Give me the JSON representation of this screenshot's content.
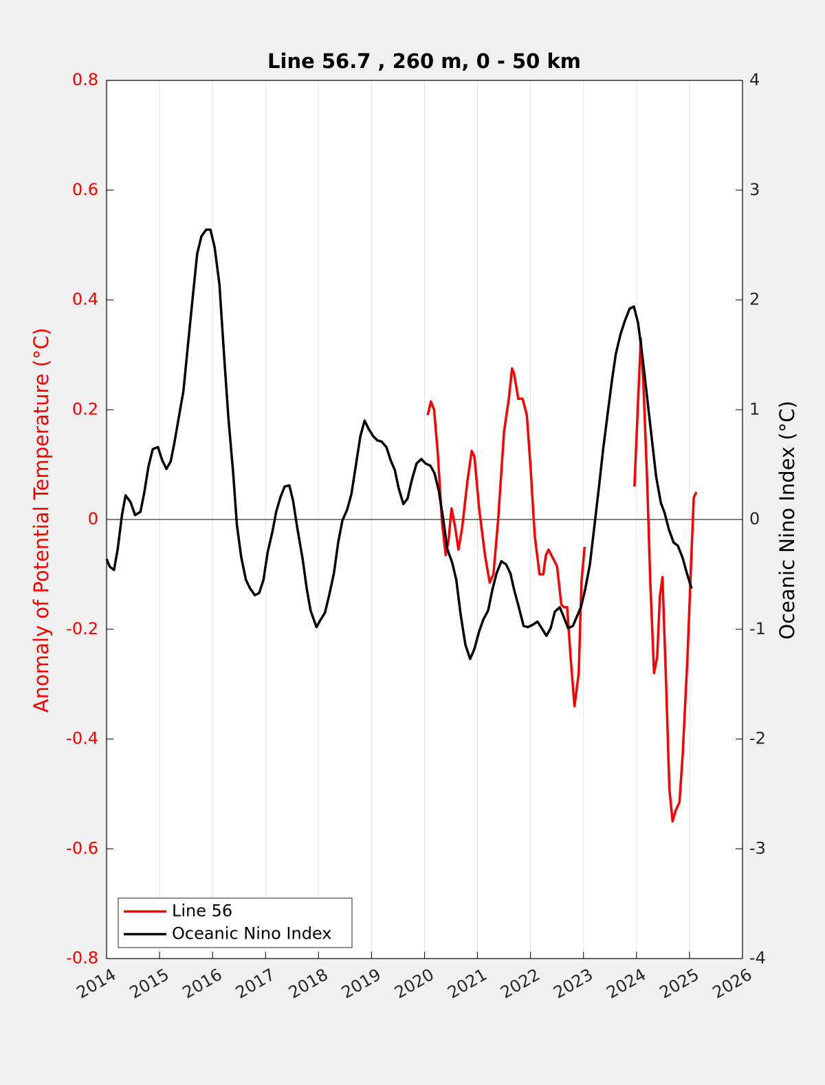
{
  "chart_data": {
    "type": "line",
    "title": "Line 56.7 , 260 m, 0 - 50 km",
    "ylabel": "Anomaly of Potential Temperature (°C)",
    "y2label": "Oceanic Nino Index (°C)",
    "xlim": [
      2014,
      2026
    ],
    "xticks": [
      2014,
      2015,
      2016,
      2017,
      2018,
      2019,
      2020,
      2021,
      2022,
      2023,
      2024,
      2025,
      2026
    ],
    "ylim": [
      -0.8,
      0.8
    ],
    "yticks": [
      -0.8,
      -0.6,
      -0.4,
      -0.2,
      0,
      0.2,
      0.4,
      0.6,
      0.8
    ],
    "y2lim": [
      -4,
      4
    ],
    "y2ticks": [
      -4,
      -3,
      -2,
      -1,
      0,
      1,
      2,
      3,
      4
    ],
    "xgrid": true,
    "zero_line": true,
    "legend": "lower-left",
    "series": [
      {
        "name": "Line 56",
        "color": "#ff0000",
        "axis": "y",
        "x": [
          2020.06,
          2020.12,
          2020.18,
          2020.25,
          2020.33,
          2020.4,
          2020.45,
          2020.51,
          2020.58,
          2020.64,
          2020.71,
          2020.81,
          2020.89,
          2020.94,
          2021.03,
          2021.14,
          2021.23,
          2021.3,
          2021.39,
          2021.5,
          2021.59,
          2021.65,
          2021.69,
          2021.77,
          2021.85,
          2021.93,
          2022.0,
          2022.08,
          2022.17,
          2022.24,
          2022.29,
          2022.34,
          2022.42,
          2022.5,
          2022.58,
          2022.63,
          2022.69,
          2022.76,
          2022.83,
          2022.91,
          2022.96,
          2023.02,
          2023.5,
          2023.96,
          2024.02,
          2024.08,
          2024.13,
          2024.2,
          2024.26,
          2024.33,
          2024.39,
          2024.44,
          2024.49,
          2024.56,
          2024.62,
          2024.68,
          2024.74,
          2024.81,
          2024.87,
          2024.96,
          2025.04,
          2025.08,
          2025.13
        ],
        "values": [
          0.19,
          0.215,
          0.2,
          0.12,
          -0.005,
          -0.065,
          -0.04,
          0.02,
          -0.015,
          -0.055,
          -0.015,
          0.07,
          0.125,
          0.115,
          0.02,
          -0.065,
          -0.115,
          -0.1,
          0,
          0.16,
          0.22,
          0.275,
          0.265,
          0.22,
          0.22,
          0.19,
          0.095,
          -0.03,
          -0.1,
          -0.1,
          -0.065,
          -0.055,
          -0.07,
          -0.085,
          -0.155,
          -0.16,
          -0.16,
          -0.255,
          -0.34,
          -0.28,
          -0.115,
          -0.05,
          null,
          0.06,
          0.195,
          0.33,
          0.245,
          0.07,
          -0.115,
          -0.28,
          -0.25,
          -0.14,
          -0.105,
          -0.305,
          -0.49,
          -0.55,
          -0.53,
          -0.515,
          -0.43,
          -0.255,
          -0.055,
          0.04,
          0.05
        ]
      },
      {
        "name": "Oceanic Nino Index",
        "color": "#000000",
        "axis": "y2",
        "x": [
          2014.0,
          2014.06,
          2014.14,
          2014.21,
          2014.29,
          2014.36,
          2014.45,
          2014.54,
          2014.64,
          2014.71,
          2014.79,
          2014.87,
          2014.97,
          2015.05,
          2015.13,
          2015.21,
          2015.28,
          2015.36,
          2015.45,
          2015.54,
          2015.63,
          2015.71,
          2015.79,
          2015.88,
          2015.96,
          2016.04,
          2016.13,
          2016.22,
          2016.3,
          2016.39,
          2016.46,
          2016.54,
          2016.63,
          2016.71,
          2016.8,
          2016.88,
          2016.96,
          2017.04,
          2017.13,
          2017.2,
          2017.28,
          2017.36,
          2017.45,
          2017.52,
          2017.6,
          2017.7,
          2017.78,
          2017.85,
          2017.96,
          2018.03,
          2018.12,
          2018.2,
          2018.29,
          2018.37,
          2018.45,
          2018.54,
          2018.62,
          2018.7,
          2018.79,
          2018.87,
          2018.94,
          2019.03,
          2019.11,
          2019.19,
          2019.28,
          2019.36,
          2019.44,
          2019.51,
          2019.6,
          2019.68,
          2019.76,
          2019.85,
          2019.94,
          2020.02,
          2020.11,
          2020.19,
          2020.27,
          2020.36,
          2020.43,
          2020.52,
          2020.6,
          2020.68,
          2020.77,
          2020.86,
          2020.94,
          2021.03,
          2021.11,
          2021.2,
          2021.28,
          2021.36,
          2021.45,
          2021.54,
          2021.62,
          2021.69,
          2021.78,
          2021.87,
          2021.95,
          2022.04,
          2022.13,
          2022.21,
          2022.3,
          2022.38,
          2022.46,
          2022.55,
          2022.63,
          2022.71,
          2022.8,
          2022.87,
          2022.95,
          2023.03,
          2023.12,
          2023.2,
          2023.29,
          2023.37,
          2023.46,
          2023.54,
          2023.61,
          2023.7,
          2023.78,
          2023.87,
          2023.95,
          2024.03,
          2024.12,
          2024.2,
          2024.29,
          2024.37,
          2024.46,
          2024.53,
          2024.61,
          2024.7,
          2024.78,
          2024.87,
          2024.95,
          2025.04
        ],
        "values": [
          -0.36,
          -0.43,
          -0.46,
          -0.27,
          0.04,
          0.22,
          0.16,
          0.04,
          0.07,
          0.24,
          0.48,
          0.64,
          0.66,
          0.54,
          0.46,
          0.53,
          0.7,
          0.92,
          1.17,
          1.61,
          2.04,
          2.42,
          2.58,
          2.64,
          2.64,
          2.48,
          2.14,
          1.48,
          0.92,
          0.42,
          -0.05,
          -0.34,
          -0.55,
          -0.63,
          -0.69,
          -0.67,
          -0.55,
          -0.3,
          -0.11,
          0.07,
          0.2,
          0.3,
          0.31,
          0.17,
          -0.08,
          -0.36,
          -0.64,
          -0.83,
          -0.98,
          -0.92,
          -0.85,
          -0.69,
          -0.49,
          -0.21,
          -0.01,
          0.09,
          0.23,
          0.48,
          0.76,
          0.9,
          0.83,
          0.76,
          0.72,
          0.71,
          0.66,
          0.54,
          0.45,
          0.29,
          0.14,
          0.19,
          0.36,
          0.51,
          0.55,
          0.51,
          0.49,
          0.42,
          0.26,
          -0.02,
          -0.27,
          -0.39,
          -0.55,
          -0.86,
          -1.14,
          -1.27,
          -1.18,
          -1.02,
          -0.91,
          -0.83,
          -0.64,
          -0.49,
          -0.38,
          -0.41,
          -0.49,
          -0.64,
          -0.8,
          -0.97,
          -0.98,
          -0.96,
          -0.93,
          -0.99,
          -1.06,
          -0.99,
          -0.84,
          -0.8,
          -0.89,
          -0.99,
          -0.97,
          -0.89,
          -0.8,
          -0.64,
          -0.41,
          -0.08,
          0.29,
          0.64,
          0.98,
          1.28,
          1.51,
          1.69,
          1.81,
          1.92,
          1.94,
          1.79,
          1.45,
          1.11,
          0.73,
          0.39,
          0.15,
          0.06,
          -0.09,
          -0.21,
          -0.24,
          -0.35,
          -0.49,
          -0.63
        ]
      }
    ]
  }
}
